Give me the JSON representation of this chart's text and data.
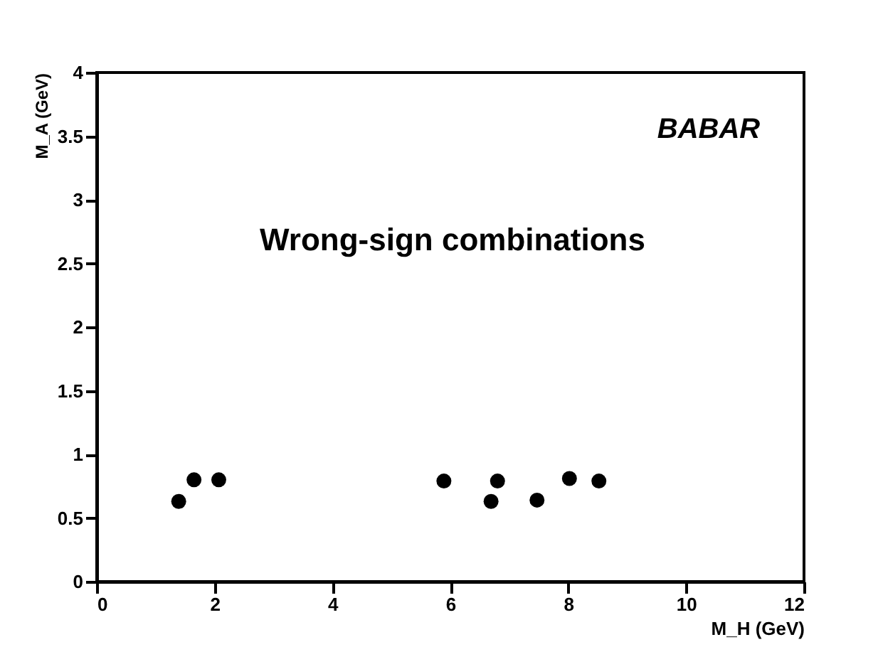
{
  "chart_data": {
    "type": "scatter",
    "xlabel": "M_H (GeV)",
    "ylabel": "M_A (GeV)",
    "annotations": [
      "BABAR",
      "Wrong-sign combinations"
    ],
    "x": [
      1.39,
      1.65,
      2.07,
      5.89,
      6.69,
      6.8,
      7.47,
      8.02,
      8.52
    ],
    "values": [
      0.63,
      0.8,
      0.8,
      0.79,
      0.63,
      0.79,
      0.64,
      0.81,
      0.79
    ],
    "color": "#000000",
    "marker": "circle",
    "xlim": [
      0,
      12
    ],
    "xticks": [
      0,
      2,
      4,
      6,
      8,
      10,
      12
    ],
    "ylim": [
      0,
      4
    ],
    "yticks": [
      0,
      0.5,
      1,
      1.5,
      2,
      2.5,
      3,
      3.5,
      4
    ],
    "grid": false
  }
}
